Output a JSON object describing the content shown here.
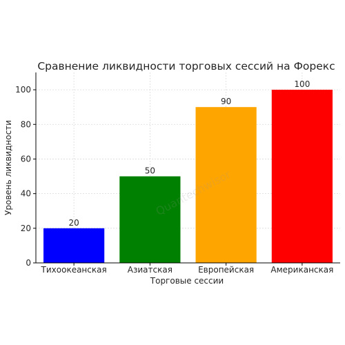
{
  "chart_data": {
    "type": "bar",
    "title": "Сравнение ликвидности торговых сессий на Форекс",
    "xlabel": "Торговые сессии",
    "ylabel": "Уровень ликвидности",
    "categories": [
      "Тихоокеанская",
      "Азиатская",
      "Европейская",
      "Американская"
    ],
    "values": [
      20,
      50,
      90,
      100
    ],
    "colors": [
      "#0000ff",
      "#008000",
      "#ffa500",
      "#ff0000"
    ],
    "ylim": [
      0,
      110
    ],
    "yticks": [
      0,
      20,
      40,
      60,
      80,
      100
    ],
    "grid": true,
    "legend": "none"
  },
  "watermark": "Quantechwisor"
}
